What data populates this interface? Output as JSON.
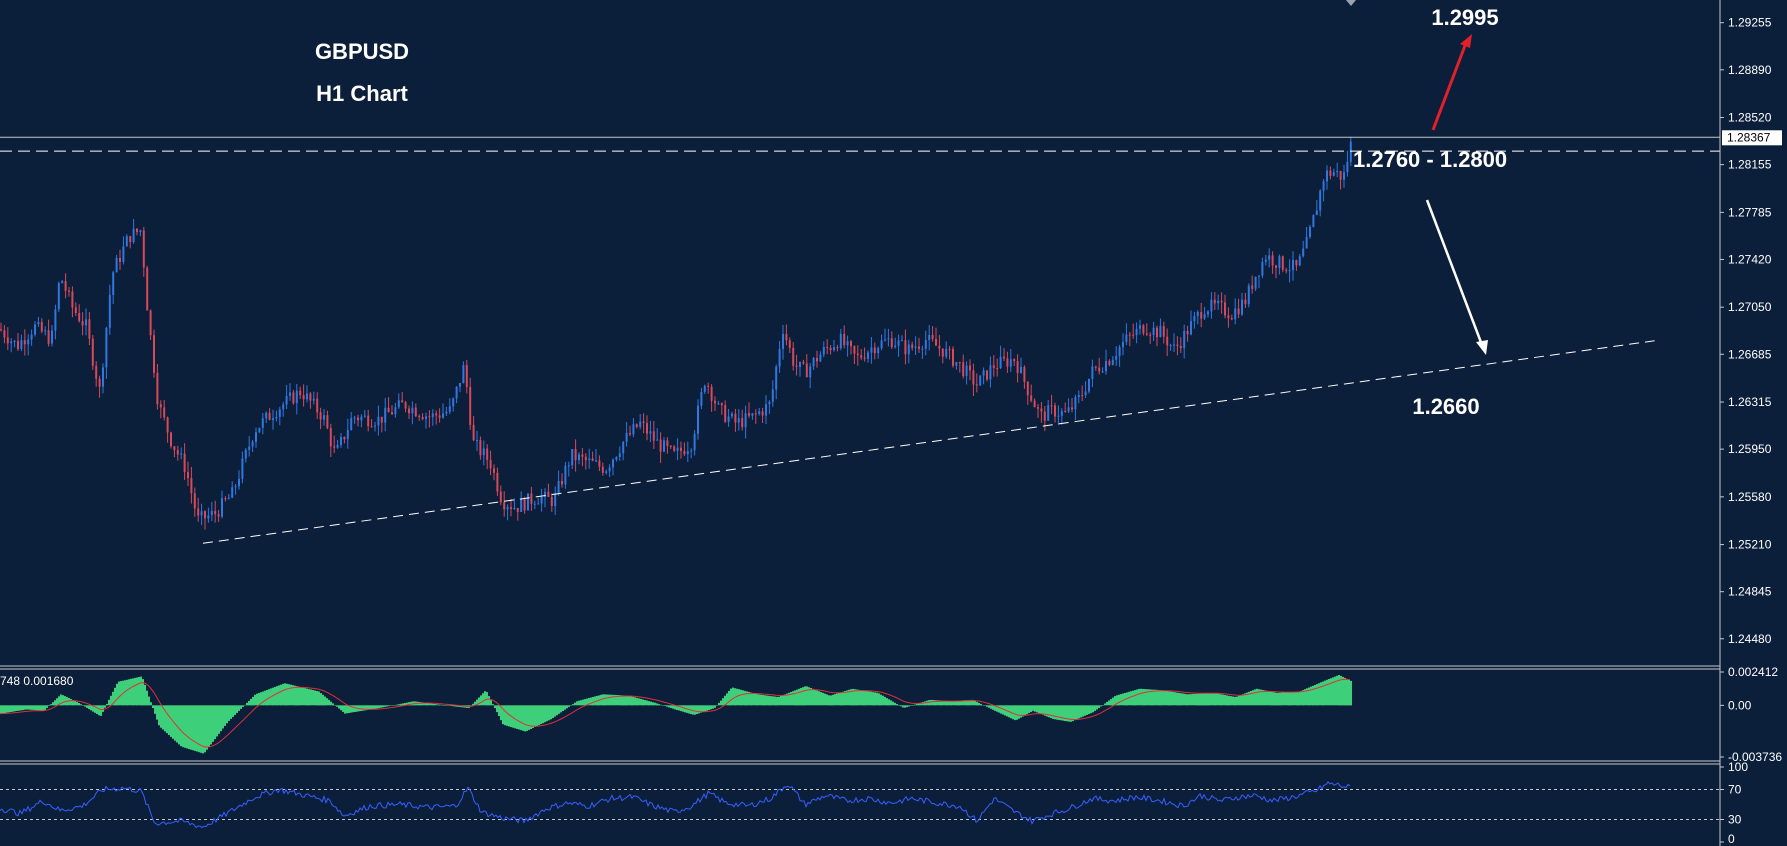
{
  "chart_data": [
    {
      "type": "candlestick",
      "title": "GBPUSD",
      "subtitle": "H1 Chart",
      "y_ticks": [
        "1.29255",
        "1.28890",
        "1.28520",
        "1.28155",
        "1.27785",
        "1.27420",
        "1.27050",
        "1.26685",
        "1.26315",
        "1.25950",
        "1.25580",
        "1.25210",
        "1.24845",
        "1.24480"
      ],
      "ylim": [
        1.243,
        1.294
      ],
      "current_price_label": "1.28367",
      "current_price": 1.28367,
      "resistance_line": 1.2826,
      "trendline": [
        {
          "bar": 0.118,
          "price": 1.2522
        },
        {
          "bar": 0.962,
          "price": 1.2679
        }
      ],
      "price_path": [
        [
          0.0,
          1.2688
        ],
        [
          0.01,
          1.2675
        ],
        [
          0.02,
          1.269
        ],
        [
          0.03,
          1.268
        ],
        [
          0.035,
          1.273
        ],
        [
          0.042,
          1.2705
        ],
        [
          0.05,
          1.269
        ],
        [
          0.058,
          1.264
        ],
        [
          0.065,
          1.273
        ],
        [
          0.075,
          1.276
        ],
        [
          0.082,
          1.2765
        ],
        [
          0.086,
          1.27
        ],
        [
          0.092,
          1.263
        ],
        [
          0.1,
          1.26
        ],
        [
          0.108,
          1.258
        ],
        [
          0.115,
          1.254
        ],
        [
          0.125,
          1.2545
        ],
        [
          0.135,
          1.256
        ],
        [
          0.148,
          1.261
        ],
        [
          0.16,
          1.2625
        ],
        [
          0.175,
          1.264
        ],
        [
          0.188,
          1.262
        ],
        [
          0.195,
          1.259
        ],
        [
          0.205,
          1.262
        ],
        [
          0.22,
          1.2618
        ],
        [
          0.235,
          1.263
        ],
        [
          0.25,
          1.262
        ],
        [
          0.262,
          1.2625
        ],
        [
          0.27,
          1.266
        ],
        [
          0.275,
          1.26
        ],
        [
          0.285,
          1.2585
        ],
        [
          0.292,
          1.2555
        ],
        [
          0.3,
          1.255
        ],
        [
          0.312,
          1.2558
        ],
        [
          0.322,
          1.2555
        ],
        [
          0.332,
          1.259
        ],
        [
          0.342,
          1.2585
        ],
        [
          0.352,
          1.258
        ],
        [
          0.362,
          1.26
        ],
        [
          0.372,
          1.2615
        ],
        [
          0.382,
          1.26
        ],
        [
          0.392,
          1.259
        ],
        [
          0.402,
          1.26
        ],
        [
          0.41,
          1.265
        ],
        [
          0.418,
          1.2625
        ],
        [
          0.428,
          1.2615
        ],
        [
          0.438,
          1.262
        ],
        [
          0.448,
          1.263
        ],
        [
          0.455,
          1.269
        ],
        [
          0.462,
          1.266
        ],
        [
          0.468,
          1.2655
        ],
        [
          0.478,
          1.267
        ],
        [
          0.488,
          1.268
        ],
        [
          0.498,
          1.2665
        ],
        [
          0.508,
          1.2675
        ],
        [
          0.518,
          1.268
        ],
        [
          0.528,
          1.2672
        ],
        [
          0.538,
          1.268
        ],
        [
          0.548,
          1.2672
        ],
        [
          0.558,
          1.266
        ],
        [
          0.568,
          1.2645
        ],
        [
          0.578,
          1.266
        ],
        [
          0.59,
          1.2665
        ],
        [
          0.598,
          1.264
        ],
        [
          0.605,
          1.262
        ],
        [
          0.612,
          1.2625
        ],
        [
          0.62,
          1.2622
        ],
        [
          0.628,
          1.2635
        ],
        [
          0.635,
          1.2655
        ],
        [
          0.645,
          1.2665
        ],
        [
          0.655,
          1.268
        ],
        [
          0.665,
          1.269
        ],
        [
          0.675,
          1.2685
        ],
        [
          0.683,
          1.2672
        ],
        [
          0.692,
          1.269
        ],
        [
          0.7,
          1.2705
        ],
        [
          0.708,
          1.2705
        ],
        [
          0.716,
          1.27
        ],
        [
          0.724,
          1.271
        ],
        [
          0.73,
          1.273
        ],
        [
          0.736,
          1.2745
        ],
        [
          0.745,
          1.2738
        ],
        [
          0.754,
          1.2735
        ],
        [
          0.76,
          1.2755
        ],
        [
          0.765,
          1.278
        ],
        [
          0.77,
          1.2808
        ],
        [
          0.776,
          1.281
        ],
        [
          0.781,
          1.2805
        ],
        [
          0.786,
          1.2835
        ]
      ],
      "last_bar": 0.786
    },
    {
      "type": "histogram",
      "indicator": "MACD",
      "header_values": "748 0.001680",
      "y_ticks": [
        "0.002412",
        "0.00",
        "-0.003736"
      ],
      "ylim": [
        -0.003736,
        0.002412
      ],
      "histogram_path": [
        [
          0.0,
          -0.0006
        ],
        [
          0.015,
          -0.0003
        ],
        [
          0.025,
          -0.0004
        ],
        [
          0.035,
          0.0008
        ],
        [
          0.045,
          0.0002
        ],
        [
          0.058,
          -0.0008
        ],
        [
          0.068,
          0.0017
        ],
        [
          0.082,
          0.0021
        ],
        [
          0.092,
          -0.0015
        ],
        [
          0.105,
          -0.003
        ],
        [
          0.118,
          -0.0035
        ],
        [
          0.132,
          -0.0012
        ],
        [
          0.148,
          0.0008
        ],
        [
          0.165,
          0.0016
        ],
        [
          0.185,
          0.001
        ],
        [
          0.2,
          -0.0006
        ],
        [
          0.22,
          -0.0002
        ],
        [
          0.24,
          0.0003
        ],
        [
          0.258,
          0.0
        ],
        [
          0.272,
          -0.0002
        ],
        [
          0.282,
          0.0011
        ],
        [
          0.292,
          -0.0014
        ],
        [
          0.305,
          -0.0019
        ],
        [
          0.32,
          -0.001
        ],
        [
          0.335,
          0.0003
        ],
        [
          0.35,
          0.0008
        ],
        [
          0.365,
          0.0007
        ],
        [
          0.38,
          0.0002
        ],
        [
          0.392,
          -0.0003
        ],
        [
          0.403,
          -0.0007
        ],
        [
          0.415,
          -0.0002
        ],
        [
          0.425,
          0.0013
        ],
        [
          0.44,
          0.0008
        ],
        [
          0.452,
          0.0006
        ],
        [
          0.468,
          0.0014
        ],
        [
          0.482,
          0.0007
        ],
        [
          0.495,
          0.0012
        ],
        [
          0.51,
          0.0009
        ],
        [
          0.525,
          -0.0002
        ],
        [
          0.54,
          0.0004
        ],
        [
          0.552,
          0.0003
        ],
        [
          0.565,
          0.0004
        ],
        [
          0.578,
          -0.0004
        ],
        [
          0.59,
          -0.0011
        ],
        [
          0.6,
          -0.0004
        ],
        [
          0.612,
          -0.001
        ],
        [
          0.622,
          -0.0012
        ],
        [
          0.635,
          -0.0005
        ],
        [
          0.648,
          0.0007
        ],
        [
          0.662,
          0.0012
        ],
        [
          0.675,
          0.0011
        ],
        [
          0.69,
          0.0008
        ],
        [
          0.705,
          0.0009
        ],
        [
          0.718,
          0.0006
        ],
        [
          0.73,
          0.0012
        ],
        [
          0.742,
          0.0009
        ],
        [
          0.755,
          0.001
        ],
        [
          0.77,
          0.0018
        ],
        [
          0.778,
          0.0022
        ],
        [
          0.786,
          0.0017
        ]
      ]
    },
    {
      "type": "line",
      "indicator": "RSI",
      "y_ticks": [
        "100",
        "70",
        "30",
        "0"
      ],
      "ylim": [
        0,
        100
      ],
      "levels": [
        70,
        30
      ],
      "rsi_path": [
        [
          0.0,
          45
        ],
        [
          0.012,
          38
        ],
        [
          0.025,
          55
        ],
        [
          0.035,
          42
        ],
        [
          0.048,
          48
        ],
        [
          0.06,
          70
        ],
        [
          0.072,
          72
        ],
        [
          0.082,
          68
        ],
        [
          0.09,
          25
        ],
        [
          0.105,
          28
        ],
        [
          0.118,
          20
        ],
        [
          0.132,
          38
        ],
        [
          0.148,
          60
        ],
        [
          0.162,
          70
        ],
        [
          0.178,
          62
        ],
        [
          0.192,
          55
        ],
        [
          0.2,
          35
        ],
        [
          0.215,
          48
        ],
        [
          0.232,
          50
        ],
        [
          0.25,
          46
        ],
        [
          0.265,
          48
        ],
        [
          0.272,
          72
        ],
        [
          0.28,
          40
        ],
        [
          0.292,
          32
        ],
        [
          0.305,
          28
        ],
        [
          0.318,
          45
        ],
        [
          0.33,
          52
        ],
        [
          0.342,
          48
        ],
        [
          0.355,
          58
        ],
        [
          0.368,
          60
        ],
        [
          0.38,
          48
        ],
        [
          0.392,
          40
        ],
        [
          0.402,
          48
        ],
        [
          0.412,
          65
        ],
        [
          0.422,
          52
        ],
        [
          0.435,
          48
        ],
        [
          0.448,
          58
        ],
        [
          0.458,
          78
        ],
        [
          0.468,
          50
        ],
        [
          0.48,
          62
        ],
        [
          0.492,
          55
        ],
        [
          0.505,
          58
        ],
        [
          0.518,
          52
        ],
        [
          0.53,
          58
        ],
        [
          0.545,
          52
        ],
        [
          0.558,
          48
        ],
        [
          0.568,
          28
        ],
        [
          0.578,
          58
        ],
        [
          0.59,
          40
        ],
        [
          0.6,
          28
        ],
        [
          0.612,
          38
        ],
        [
          0.622,
          45
        ],
        [
          0.635,
          58
        ],
        [
          0.648,
          55
        ],
        [
          0.66,
          60
        ],
        [
          0.675,
          55
        ],
        [
          0.688,
          48
        ],
        [
          0.698,
          62
        ],
        [
          0.71,
          55
        ],
        [
          0.72,
          60
        ],
        [
          0.73,
          62
        ],
        [
          0.74,
          55
        ],
        [
          0.752,
          60
        ],
        [
          0.765,
          68
        ],
        [
          0.772,
          78
        ],
        [
          0.778,
          76
        ],
        [
          0.786,
          72
        ]
      ]
    }
  ],
  "annotations": {
    "target_up": "1.2995",
    "zone": "1.2760 - 1.2800",
    "target_down": "1.2660"
  },
  "colors": {
    "background": "#0b1e3a",
    "bull_candle": "#2f78e0",
    "bear_candle": "#d84a5a",
    "macd_histogram": "#3dcf7a",
    "macd_signal": "#e0303a",
    "rsi_line": "#3760ff",
    "arrow_up": "#e0202a",
    "arrow_down": "#ffffff",
    "text": "#ffffff"
  }
}
